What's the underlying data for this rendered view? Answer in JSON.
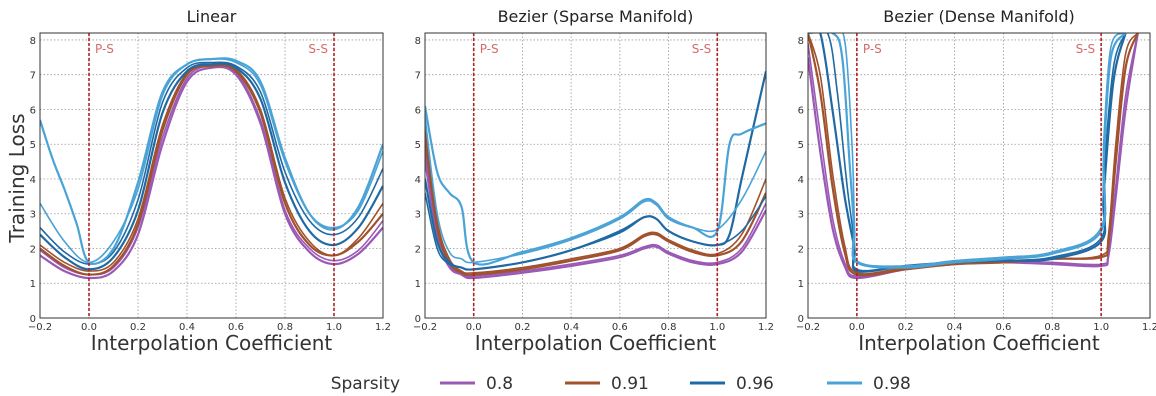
{
  "ylabel": "Training Loss",
  "legend": {
    "title": "Sparsity",
    "entries": [
      {
        "label": "0.8",
        "color": "#9b59b6"
      },
      {
        "label": "0.91",
        "color": "#a0522d"
      },
      {
        "label": "0.96",
        "color": "#1f6aa5"
      },
      {
        "label": "0.98",
        "color": "#4aa3d6"
      }
    ]
  },
  "chart_data": [
    {
      "type": "line",
      "title": "Linear",
      "xlabel": "Interpolation Coefficient",
      "ylabel": "Training Loss",
      "xlim": [
        -0.2,
        1.2
      ],
      "ylim": [
        0,
        8.2
      ],
      "xticks": [
        "-0.2",
        "0.0",
        "0.2",
        "0.4",
        "0.6",
        "0.8",
        "1.0",
        "1.2"
      ],
      "yticks": [
        "0",
        "1",
        "2",
        "3",
        "4",
        "5",
        "6",
        "7",
        "8"
      ],
      "markers": [
        {
          "x": 0.0,
          "label": "P-S"
        },
        {
          "x": 1.0,
          "label": "S-S"
        }
      ],
      "grid": true,
      "series": [
        {
          "name": "0.8",
          "x": [
            -0.2,
            -0.1,
            0,
            0.1,
            0.2,
            0.3,
            0.4,
            0.5,
            0.6,
            0.7,
            0.8,
            0.9,
            1.0,
            1.1,
            1.2
          ],
          "y": [
            1.8,
            1.35,
            1.15,
            1.35,
            2.4,
            5.0,
            6.8,
            7.2,
            7.0,
            5.6,
            3.0,
            1.9,
            1.55,
            1.85,
            2.6
          ]
        },
        {
          "name": "0.8",
          "x": [
            -0.2,
            -0.1,
            0,
            0.1,
            0.2,
            0.3,
            0.4,
            0.5,
            0.6,
            0.7,
            0.8,
            0.9,
            1.0,
            1.1,
            1.2
          ],
          "y": [
            1.95,
            1.45,
            1.25,
            1.45,
            2.6,
            5.2,
            6.9,
            7.25,
            7.05,
            5.7,
            3.1,
            2.0,
            1.65,
            1.95,
            2.8
          ]
        },
        {
          "name": "0.91",
          "x": [
            -0.2,
            -0.1,
            0,
            0.1,
            0.2,
            0.3,
            0.4,
            0.5,
            0.6,
            0.7,
            0.8,
            0.9,
            1.0,
            1.1,
            1.2
          ],
          "y": [
            2.0,
            1.5,
            1.25,
            1.5,
            2.7,
            5.4,
            7.0,
            7.25,
            7.1,
            5.9,
            3.3,
            2.1,
            1.8,
            2.2,
            3.0
          ]
        },
        {
          "name": "0.91",
          "x": [
            -0.2,
            -0.1,
            0,
            0.1,
            0.2,
            0.3,
            0.4,
            0.5,
            0.6,
            0.7,
            0.8,
            0.9,
            1.0,
            1.1,
            1.2
          ],
          "y": [
            2.1,
            1.6,
            1.35,
            1.6,
            2.85,
            5.55,
            7.05,
            7.25,
            7.15,
            6.0,
            3.45,
            2.2,
            1.8,
            2.3,
            3.3
          ]
        },
        {
          "name": "0.96",
          "x": [
            -0.2,
            -0.1,
            0,
            0.1,
            0.2,
            0.3,
            0.4,
            0.5,
            0.6,
            0.7,
            0.8,
            0.9,
            1.0,
            1.1,
            1.2
          ],
          "y": [
            2.4,
            1.75,
            1.4,
            1.75,
            3.1,
            5.9,
            7.1,
            7.3,
            7.2,
            6.3,
            3.9,
            2.5,
            2.1,
            2.6,
            3.8
          ]
        },
        {
          "name": "0.96",
          "x": [
            -0.2,
            -0.1,
            0,
            0.1,
            0.2,
            0.3,
            0.4,
            0.5,
            0.6,
            0.7,
            0.8,
            0.9,
            1.0,
            1.1,
            1.2
          ],
          "y": [
            2.6,
            1.9,
            1.55,
            1.9,
            3.4,
            6.2,
            7.2,
            7.35,
            7.25,
            6.5,
            4.2,
            2.8,
            2.4,
            2.9,
            4.3
          ]
        },
        {
          "name": "0.98",
          "x": [
            -0.2,
            -0.15,
            -0.1,
            -0.05,
            0,
            0.1,
            0.2,
            0.3,
            0.4,
            0.5,
            0.6,
            0.7,
            0.8,
            0.9,
            1.0,
            1.1,
            1.2
          ],
          "y": [
            5.7,
            4.6,
            3.7,
            2.7,
            1.6,
            2.0,
            3.9,
            6.5,
            7.3,
            7.45,
            7.4,
            6.8,
            4.6,
            3.0,
            2.55,
            3.2,
            5.0
          ]
        },
        {
          "name": "0.98",
          "x": [
            -0.2,
            -0.1,
            0,
            0.1,
            0.2,
            0.3,
            0.4,
            0.5,
            0.6,
            0.7,
            0.8,
            0.9,
            1.0,
            1.1,
            1.2
          ],
          "y": [
            3.3,
            2.2,
            1.6,
            2.2,
            3.7,
            6.4,
            7.3,
            7.45,
            7.35,
            6.7,
            4.5,
            3.0,
            2.6,
            3.1,
            4.8
          ]
        }
      ]
    },
    {
      "type": "line",
      "title": "Bezier (Sparse Manifold)",
      "xlabel": "Interpolation Coefficient",
      "xlim": [
        -0.2,
        1.2
      ],
      "ylim": [
        0,
        8.2
      ],
      "xticks": [
        "-0.2",
        "0.0",
        "0.2",
        "0.4",
        "0.6",
        "0.8",
        "1.0",
        "1.2"
      ],
      "yticks": [
        "0",
        "1",
        "2",
        "3",
        "4",
        "5",
        "6",
        "7",
        "8"
      ],
      "markers": [
        {
          "x": 0.0,
          "label": "P-S"
        },
        {
          "x": 1.0,
          "label": "S-S"
        }
      ],
      "grid": true,
      "series": [
        {
          "name": "0.8",
          "x": [
            -0.2,
            -0.15,
            -0.1,
            -0.05,
            0,
            0.2,
            0.4,
            0.6,
            0.7,
            0.75,
            0.8,
            0.9,
            1.0,
            1.1,
            1.2
          ],
          "y": [
            4.8,
            2.4,
            1.5,
            1.25,
            1.15,
            1.3,
            1.5,
            1.75,
            2.0,
            2.05,
            1.85,
            1.6,
            1.55,
            1.9,
            3.1
          ]
        },
        {
          "name": "0.8",
          "x": [
            -0.2,
            -0.15,
            -0.1,
            -0.05,
            0,
            0.2,
            0.4,
            0.6,
            0.7,
            0.75,
            0.8,
            0.9,
            1.0,
            1.1,
            1.2
          ],
          "y": [
            4.5,
            2.3,
            1.45,
            1.25,
            1.2,
            1.35,
            1.55,
            1.8,
            2.05,
            2.1,
            1.9,
            1.65,
            1.6,
            2.0,
            3.3
          ]
        },
        {
          "name": "0.91",
          "x": [
            -0.2,
            -0.15,
            -0.1,
            -0.05,
            0,
            0.2,
            0.4,
            0.6,
            0.7,
            0.75,
            0.8,
            0.9,
            1.0,
            1.1,
            1.2
          ],
          "y": [
            5.2,
            2.6,
            1.6,
            1.3,
            1.25,
            1.4,
            1.65,
            1.95,
            2.35,
            2.4,
            2.2,
            1.9,
            1.8,
            2.2,
            3.6
          ]
        },
        {
          "name": "0.91",
          "x": [
            -0.2,
            -0.15,
            -0.1,
            -0.05,
            0,
            0.2,
            0.4,
            0.6,
            0.7,
            0.75,
            0.8,
            0.9,
            1.0,
            1.1,
            1.2
          ],
          "y": [
            5.5,
            2.8,
            1.7,
            1.35,
            1.3,
            1.45,
            1.7,
            2.0,
            2.4,
            2.45,
            2.25,
            1.95,
            1.85,
            2.4,
            4.0
          ]
        },
        {
          "name": "0.96",
          "x": [
            -0.2,
            -0.15,
            -0.1,
            -0.05,
            0,
            0.2,
            0.4,
            0.6,
            0.7,
            0.75,
            0.8,
            0.9,
            1.0,
            1.05,
            1.1,
            1.2
          ],
          "y": [
            4.0,
            2.2,
            1.6,
            1.45,
            1.4,
            1.6,
            1.95,
            2.5,
            2.9,
            2.85,
            2.5,
            2.2,
            2.1,
            2.4,
            4.0,
            7.1
          ]
        },
        {
          "name": "0.96",
          "x": [
            -0.2,
            -0.15,
            -0.1,
            -0.05,
            0,
            0.2,
            0.4,
            0.6,
            0.7,
            0.75,
            0.8,
            0.9,
            1.0,
            1.1,
            1.2
          ],
          "y": [
            3.6,
            2.0,
            1.55,
            1.45,
            1.4,
            1.6,
            1.95,
            2.45,
            2.9,
            2.85,
            2.5,
            2.2,
            2.1,
            2.5,
            3.5
          ]
        },
        {
          "name": "0.98",
          "x": [
            -0.2,
            -0.15,
            -0.1,
            -0.05,
            0,
            0.2,
            0.4,
            0.6,
            0.7,
            0.75,
            0.8,
            0.9,
            1.0,
            1.05,
            1.1,
            1.2
          ],
          "y": [
            6.1,
            4.2,
            3.6,
            3.2,
            1.6,
            1.9,
            2.3,
            2.9,
            3.4,
            3.3,
            2.9,
            2.6,
            2.5,
            5.0,
            5.3,
            5.6
          ]
        },
        {
          "name": "0.98",
          "x": [
            -0.2,
            -0.15,
            -0.1,
            -0.05,
            0,
            0.2,
            0.4,
            0.6,
            0.7,
            0.75,
            0.8,
            0.9,
            1.0,
            1.1,
            1.2
          ],
          "y": [
            5.8,
            3.0,
            1.9,
            1.7,
            1.6,
            1.85,
            2.25,
            2.85,
            3.35,
            3.25,
            2.85,
            2.6,
            2.55,
            3.4,
            4.8
          ]
        }
      ]
    },
    {
      "type": "line",
      "title": "Bezier (Dense Manifold)",
      "xlabel": "Interpolation Coefficient",
      "xlim": [
        -0.2,
        1.2
      ],
      "ylim": [
        0,
        8.2
      ],
      "xticks": [
        "-0.2",
        "0.0",
        "0.2",
        "0.4",
        "0.6",
        "0.8",
        "1.0",
        "1.2"
      ],
      "yticks": [
        "0",
        "1",
        "2",
        "3",
        "4",
        "5",
        "6",
        "7",
        "8"
      ],
      "markers": [
        {
          "x": 0.0,
          "label": "P-S"
        },
        {
          "x": 1.0,
          "label": "S-S"
        }
      ],
      "grid": true,
      "series": [
        {
          "name": "0.8",
          "x": [
            -0.2,
            -0.15,
            -0.1,
            -0.05,
            0,
            0.2,
            0.4,
            0.6,
            0.8,
            1.0,
            1.03,
            1.06,
            1.1,
            1.15
          ],
          "y": [
            7.5,
            4.8,
            2.6,
            1.5,
            1.15,
            1.4,
            1.55,
            1.6,
            1.55,
            1.5,
            1.8,
            3.5,
            6.0,
            8.2
          ]
        },
        {
          "name": "0.8",
          "x": [
            -0.2,
            -0.15,
            -0.1,
            -0.05,
            0,
            0.2,
            0.4,
            0.6,
            0.8,
            1.0,
            1.03,
            1.06,
            1.1,
            1.15
          ],
          "y": [
            7.9,
            5.3,
            2.9,
            1.6,
            1.2,
            1.45,
            1.6,
            1.65,
            1.6,
            1.55,
            1.9,
            3.8,
            6.4,
            8.2
          ]
        },
        {
          "name": "0.91",
          "x": [
            -0.2,
            -0.15,
            -0.1,
            -0.05,
            0,
            0.2,
            0.4,
            0.6,
            0.8,
            1.0,
            1.03,
            1.06,
            1.1,
            1.15
          ],
          "y": [
            8.2,
            6.5,
            3.8,
            1.9,
            1.25,
            1.4,
            1.55,
            1.6,
            1.7,
            1.75,
            2.2,
            4.5,
            7.2,
            8.2
          ]
        },
        {
          "name": "0.91",
          "x": [
            -0.2,
            -0.15,
            -0.1,
            -0.05,
            0,
            0.2,
            0.4,
            0.6,
            0.8,
            1.0,
            1.03,
            1.06,
            1.1,
            1.15
          ],
          "y": [
            8.2,
            7.0,
            4.2,
            2.1,
            1.3,
            1.45,
            1.6,
            1.65,
            1.7,
            1.8,
            2.4,
            5.0,
            7.6,
            8.2
          ]
        },
        {
          "name": "0.96",
          "x": [
            -0.2,
            -0.15,
            -0.1,
            -0.05,
            -0.01,
            0,
            0.2,
            0.4,
            0.6,
            0.8,
            1.0,
            1.01,
            1.05,
            1.1
          ],
          "y": [
            8.2,
            8.2,
            6.0,
            3.5,
            2.0,
            1.35,
            1.5,
            1.6,
            1.65,
            1.7,
            2.2,
            3.5,
            6.8,
            8.2
          ]
        },
        {
          "name": "0.96",
          "x": [
            -0.2,
            -0.12,
            -0.08,
            -0.04,
            -0.01,
            0,
            0.2,
            0.4,
            0.6,
            0.8,
            1.0,
            1.01,
            1.05,
            1.1
          ],
          "y": [
            8.2,
            8.2,
            6.5,
            3.8,
            2.2,
            1.4,
            1.5,
            1.6,
            1.65,
            1.75,
            2.3,
            4.0,
            7.2,
            8.2
          ]
        },
        {
          "name": "0.98",
          "x": [
            -0.2,
            -0.1,
            -0.06,
            -0.03,
            -0.01,
            0,
            0.2,
            0.4,
            0.6,
            0.8,
            1.0,
            1.01,
            1.04,
            1.1
          ],
          "y": [
            8.2,
            8.2,
            7.5,
            4.5,
            2.5,
            1.6,
            1.45,
            1.6,
            1.7,
            1.85,
            2.5,
            4.5,
            7.5,
            8.2
          ]
        },
        {
          "name": "0.98",
          "x": [
            -0.2,
            -0.1,
            -0.05,
            -0.02,
            -0.01,
            0,
            0.2,
            0.4,
            0.6,
            0.8,
            1.0,
            1.01,
            1.04,
            1.1
          ],
          "y": [
            8.2,
            8.2,
            8.0,
            5.0,
            2.8,
            1.65,
            1.5,
            1.65,
            1.75,
            1.9,
            2.6,
            5.0,
            7.8,
            8.2
          ]
        }
      ]
    }
  ]
}
